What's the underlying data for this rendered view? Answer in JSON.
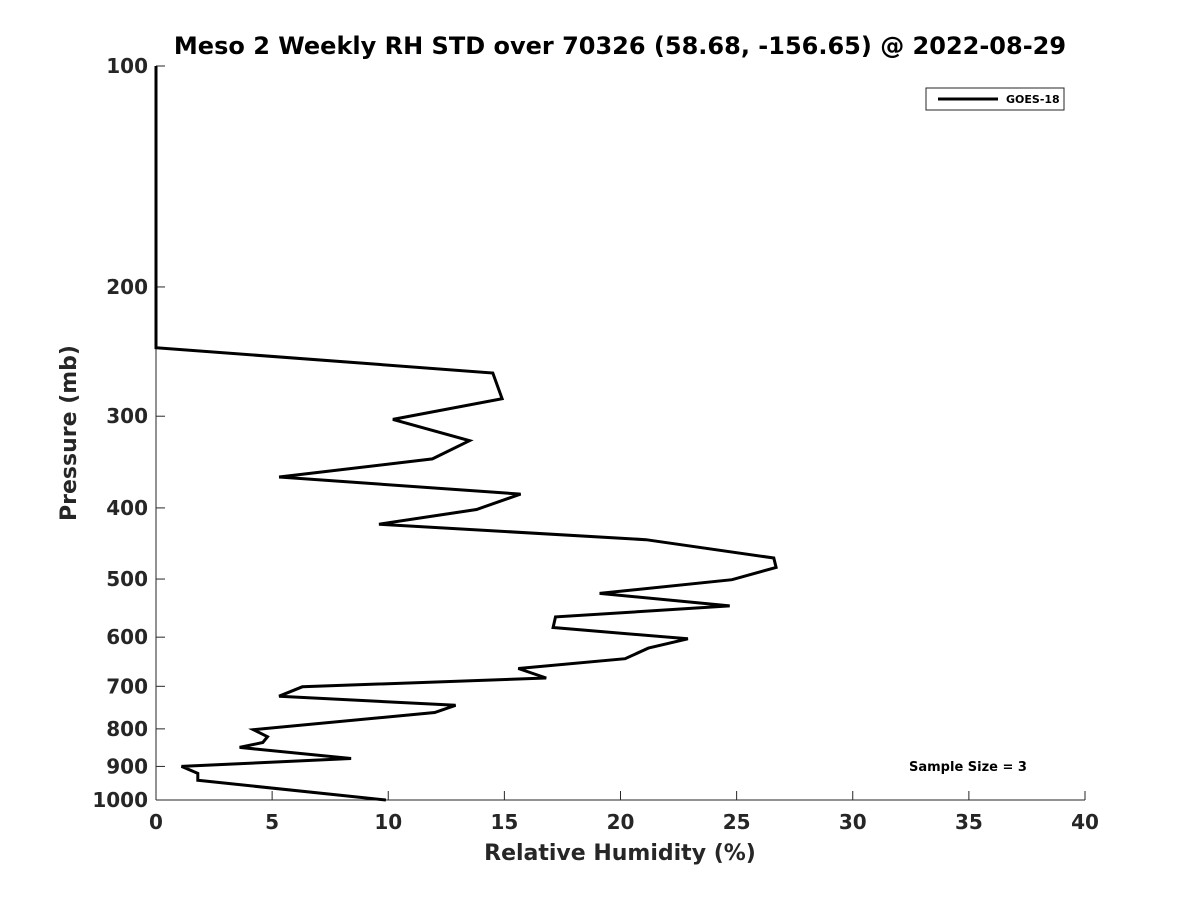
{
  "chart_data": {
    "type": "line",
    "title": "Meso 2 Weekly RH STD over 70326 (58.68, -156.65) @ 2022-08-29",
    "xlabel": "Relative Humidity (%)",
    "ylabel": "Pressure (mb)",
    "xlim": [
      0,
      40
    ],
    "ylim": [
      100,
      1000
    ],
    "yscale": "log",
    "y_reversed": true,
    "grid": false,
    "x_ticks": [
      0,
      5,
      10,
      15,
      20,
      25,
      30,
      35,
      40
    ],
    "y_ticks": [
      100,
      200,
      300,
      400,
      500,
      600,
      700,
      800,
      900,
      1000
    ],
    "legend": {
      "position": "top-right",
      "entries": [
        "GOES-18"
      ]
    },
    "annotation": "Sample Size = 3",
    "series": [
      {
        "name": "GOES-18",
        "color": "#000000",
        "points": [
          {
            "x": 0.0,
            "y": 100
          },
          {
            "x": 0.0,
            "y": 150
          },
          {
            "x": 0.0,
            "y": 200
          },
          {
            "x": 0.0,
            "y": 242
          },
          {
            "x": 14.5,
            "y": 262
          },
          {
            "x": 14.9,
            "y": 284
          },
          {
            "x": 10.2,
            "y": 303
          },
          {
            "x": 13.5,
            "y": 324
          },
          {
            "x": 11.9,
            "y": 343
          },
          {
            "x": 5.3,
            "y": 363
          },
          {
            "x": 15.7,
            "y": 383
          },
          {
            "x": 13.8,
            "y": 402
          },
          {
            "x": 9.6,
            "y": 421
          },
          {
            "x": 21.1,
            "y": 442
          },
          {
            "x": 26.6,
            "y": 468
          },
          {
            "x": 26.7,
            "y": 482
          },
          {
            "x": 24.8,
            "y": 501
          },
          {
            "x": 19.1,
            "y": 523
          },
          {
            "x": 24.7,
            "y": 544
          },
          {
            "x": 17.2,
            "y": 563
          },
          {
            "x": 17.1,
            "y": 582
          },
          {
            "x": 22.9,
            "y": 603
          },
          {
            "x": 21.2,
            "y": 621
          },
          {
            "x": 20.2,
            "y": 642
          },
          {
            "x": 15.6,
            "y": 662
          },
          {
            "x": 16.8,
            "y": 682
          },
          {
            "x": 6.3,
            "y": 701
          },
          {
            "x": 5.3,
            "y": 722
          },
          {
            "x": 12.9,
            "y": 743
          },
          {
            "x": 12.0,
            "y": 760
          },
          {
            "x": 4.2,
            "y": 802
          },
          {
            "x": 4.8,
            "y": 820
          },
          {
            "x": 4.6,
            "y": 835
          },
          {
            "x": 3.6,
            "y": 848
          },
          {
            "x": 8.4,
            "y": 878
          },
          {
            "x": 1.1,
            "y": 900
          },
          {
            "x": 1.8,
            "y": 920
          },
          {
            "x": 1.8,
            "y": 940
          },
          {
            "x": 9.9,
            "y": 1000
          }
        ]
      }
    ]
  }
}
